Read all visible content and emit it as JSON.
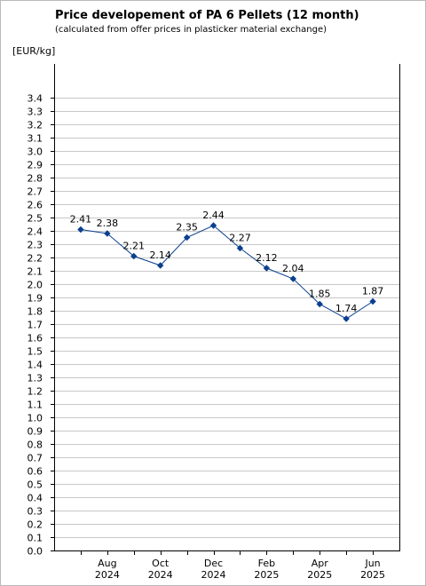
{
  "chart_data": {
    "type": "line",
    "title": "Price developement of PA 6 Pellets (12 month)",
    "subtitle": "(calculated from offer prices in plasticker material exchange)",
    "ylabel": "[EUR/kg]",
    "ylim": [
      0,
      3.4
    ],
    "ytick_step": 0.1,
    "grid": true,
    "x_labels": [
      {
        "month": "Aug",
        "year": "2024"
      },
      {
        "month": "Oct",
        "year": "2024"
      },
      {
        "month": "Dec",
        "year": "2024"
      },
      {
        "month": "Feb",
        "year": "2025"
      },
      {
        "month": "Apr",
        "year": "2025"
      },
      {
        "month": "Jun",
        "year": "2025"
      }
    ],
    "series": [
      {
        "color": "#0b3f8f",
        "values": [
          2.41,
          2.38,
          2.21,
          2.14,
          2.35,
          2.44,
          2.27,
          2.12,
          2.04,
          1.85,
          1.74,
          1.87
        ],
        "labels": [
          "2.41",
          "2.38",
          "2.21",
          "2.14",
          "2.35",
          "2.44",
          "2.27",
          "2.12",
          "2.04",
          "1.85",
          "1.74",
          "1.87"
        ]
      }
    ]
  }
}
